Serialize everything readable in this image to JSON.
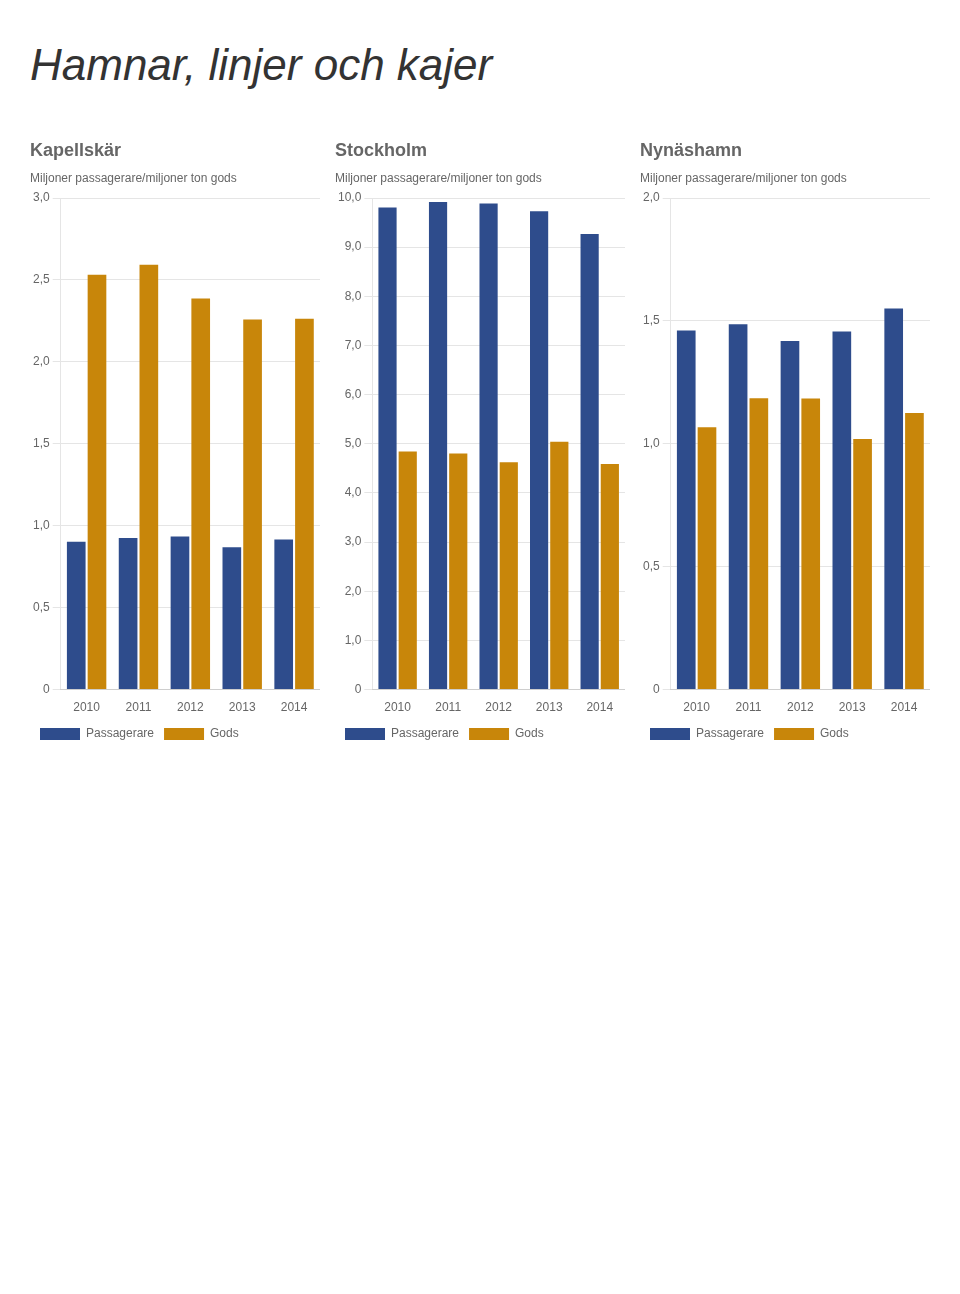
{
  "title": "Hamnar, linjer och kajer",
  "chart_data": [
    {
      "type": "bar",
      "title": "Kapellskär",
      "subtitle": "Miljoner passagerare/miljoner ton gods",
      "categories": [
        "2010",
        "2011",
        "2012",
        "2013",
        "2014"
      ],
      "series": [
        {
          "name": "Passagerare",
          "color": "#2e4c8c",
          "values": [
            0.901681,
            0.925325,
            0.93394,
            0.868231,
            0.915695
          ]
        },
        {
          "name": "Gods",
          "color": "#c8860a",
          "values": [
            2.531814,
            2.592627,
            2.386931,
            2.259195,
            2.263323
          ]
        }
      ],
      "ylim": [
        0,
        3.0
      ],
      "yticks": [
        0,
        {
          "value": 0.5,
          "label": "0,5"
        },
        {
          "value": 1.0,
          "label": "1,0"
        },
        {
          "value": 1.5,
          "label": "1,5"
        },
        {
          "value": 2.0,
          "label": "2,0"
        },
        {
          "value": 2.5,
          "label": "2,5"
        },
        {
          "value": 3.0,
          "label": "3,0"
        }
      ],
      "grid": true,
      "legend": "bottom"
    },
    {
      "type": "bar",
      "title": "Stockholm",
      "subtitle": "Miljoner passagerare/miljoner ton gods",
      "categories": [
        "2010",
        "2011",
        "2012",
        "2013",
        "2014"
      ],
      "series": [
        {
          "name": "Passagerare",
          "color": "#2e4c8c",
          "values": [
            9.807631,
            9.920333,
            9.888549,
            9.730444,
            9.266295
          ]
        },
        {
          "name": "Gods",
          "color": "#c8860a",
          "values": [
            4.843405,
            4.800808,
            4.622502,
            5.04315,
            4.589814
          ]
        }
      ],
      "ylim": [
        0,
        10.0
      ],
      "yticks": [
        0,
        {
          "value": 1.0,
          "label": "1,0"
        },
        {
          "value": 2.0,
          "label": "2,0"
        },
        {
          "value": 3.0,
          "label": "3,0"
        },
        {
          "value": 4.0,
          "label": "4,0"
        },
        {
          "value": 5.0,
          "label": "5,0"
        },
        {
          "value": 6.0,
          "label": "6,0"
        },
        {
          "value": 7.0,
          "label": "7,0"
        },
        {
          "value": 8.0,
          "label": "8,0"
        },
        {
          "value": 9.0,
          "label": "9,0"
        },
        {
          "value": 10.0,
          "label": "10,0"
        }
      ],
      "grid": true,
      "legend": "bottom"
    },
    {
      "type": "bar",
      "title": "Nynäshamn",
      "subtitle": "Miljoner passagerare/miljoner ton gods",
      "categories": [
        "2010",
        "2011",
        "2012",
        "2013",
        "2014"
      ],
      "series": [
        {
          "name": "Passagerare",
          "color": "#2e4c8c",
          "values": [
            1.461074,
            1.486325,
            1.417882,
            1.457038,
            1.550002
          ]
        },
        {
          "name": "Gods",
          "color": "#c8860a",
          "values": [
            1.067041,
            1.185087,
            1.184721,
            1.019579,
            1.12538
          ]
        }
      ],
      "ylim": [
        0,
        2.0
      ],
      "yticks": [
        0,
        {
          "value": 0.5,
          "label": "0,5"
        },
        {
          "value": 1.0,
          "label": "1,0"
        },
        {
          "value": 1.5,
          "label": "1,5"
        },
        {
          "value": 2.0,
          "label": "2,0"
        }
      ],
      "grid": true,
      "legend": "bottom"
    }
  ]
}
